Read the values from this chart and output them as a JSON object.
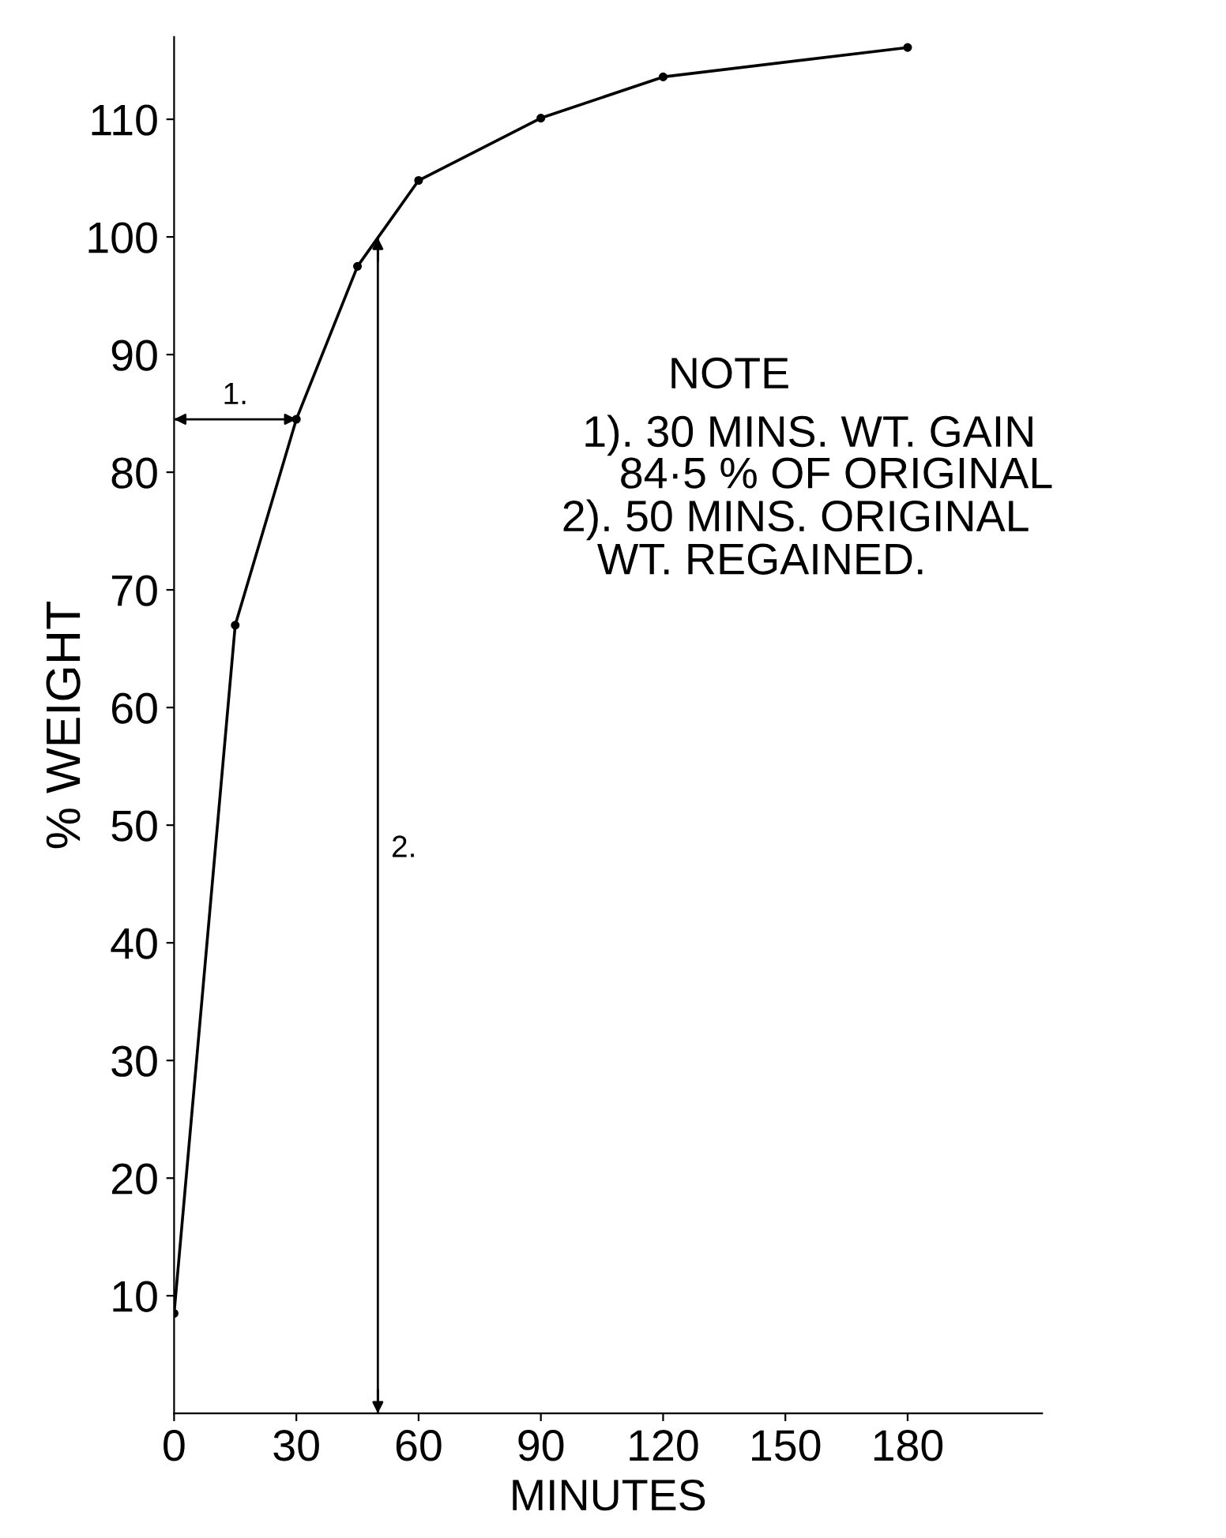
{
  "chart_data": {
    "type": "line",
    "xlabel": "MINUTES",
    "ylabel": "% WEIGHT",
    "x": [
      0,
      15,
      30,
      45,
      60,
      90,
      120,
      180
    ],
    "series": [
      {
        "color": "#000000",
        "values": [
          8.5,
          67,
          84.5,
          97.5,
          104.8,
          110.1,
          113.6,
          116.1
        ]
      },
      {
        "color": "#000000",
        "x": [
          0,
          30
        ],
        "values": [
          84.5,
          84.5
        ],
        "marker": "none"
      }
    ],
    "ref_lines": [
      {
        "axis": "x",
        "value": 50,
        "color": "#000000"
      }
    ],
    "xlim": [
      0,
      213
    ],
    "xticks": [
      0,
      30,
      60,
      90,
      120,
      150,
      180
    ],
    "ylim": [
      0,
      117
    ],
    "yticks": [
      10,
      20,
      30,
      40,
      50,
      60,
      70,
      80,
      90,
      100,
      110
    ],
    "marker": "circle",
    "line_style": "solid",
    "grid": false,
    "annotations": [
      {
        "text": "1.",
        "x": 15,
        "y": 84.5
      },
      "2.",
      "NOTE",
      "1). 30 MINS. WT. GAIN",
      "84·5 % OF ORIGINAL",
      "2). 50 MINS. ORIGINAL",
      "WT. REGAINED."
    ]
  }
}
